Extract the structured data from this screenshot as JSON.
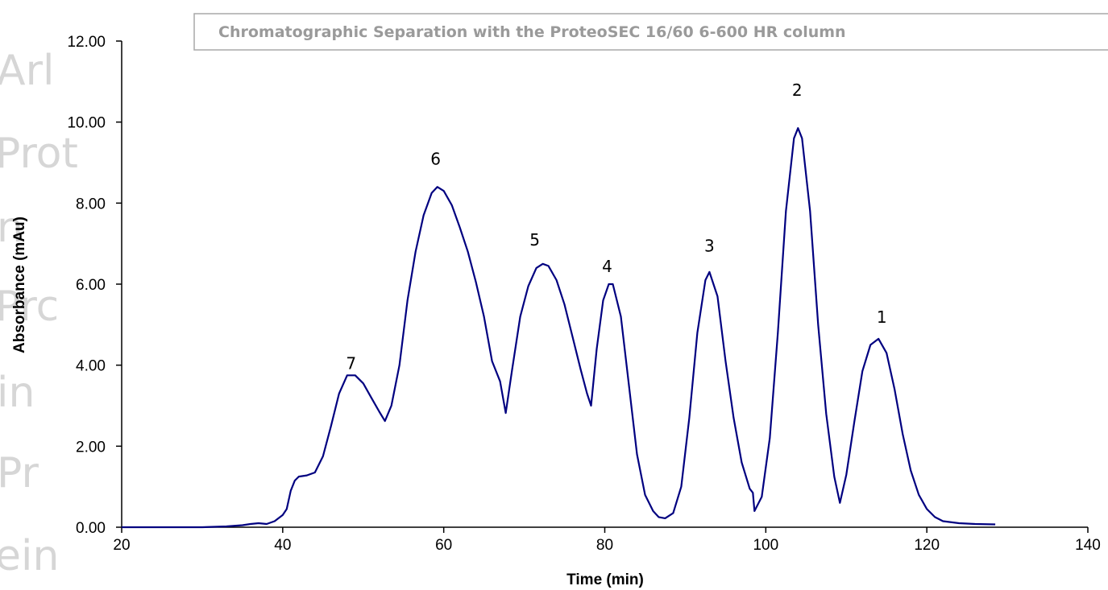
{
  "watermark": {
    "fragments": [
      "Arl",
      "Prot",
      "n",
      "Prc",
      "in",
      "Pr",
      "ein"
    ]
  },
  "chart_data": {
    "type": "line",
    "title": "Chromatographic Separation with the ProteoSEC  16/60 6-600 HR column",
    "xlabel": "Time (min)",
    "ylabel": "Absorbance (mAu)",
    "xlim": [
      20,
      140
    ],
    "ylim": [
      0,
      12
    ],
    "x_ticks": [
      "20",
      "40",
      "60",
      "80",
      "100",
      "120",
      "140"
    ],
    "y_ticks": [
      "0.00",
      "2.00",
      "4.00",
      "6.00",
      "8.00",
      "10.00",
      "12.00"
    ],
    "grid": false,
    "line_color": "#000080",
    "series": [
      {
        "points": [
          [
            20,
            0
          ],
          [
            30,
            0
          ],
          [
            33,
            0.02
          ],
          [
            35,
            0.05
          ],
          [
            36,
            0.08
          ],
          [
            37,
            0.1
          ],
          [
            38,
            0.08
          ],
          [
            39,
            0.15
          ],
          [
            40,
            0.3
          ],
          [
            40.5,
            0.45
          ],
          [
            41,
            0.9
          ],
          [
            41.5,
            1.15
          ],
          [
            42,
            1.25
          ],
          [
            43,
            1.28
          ],
          [
            44,
            1.35
          ],
          [
            45,
            1.75
          ],
          [
            46,
            2.5
          ],
          [
            47,
            3.3
          ],
          [
            48,
            3.75
          ],
          [
            49,
            3.75
          ],
          [
            50,
            3.55
          ],
          [
            51,
            3.2
          ],
          [
            52,
            2.85
          ],
          [
            52.7,
            2.62
          ],
          [
            53.5,
            3.0
          ],
          [
            54.5,
            4.0
          ],
          [
            55.5,
            5.6
          ],
          [
            56.5,
            6.8
          ],
          [
            57.5,
            7.7
          ],
          [
            58.5,
            8.25
          ],
          [
            59.2,
            8.4
          ],
          [
            60,
            8.3
          ],
          [
            61,
            7.95
          ],
          [
            62,
            7.4
          ],
          [
            63,
            6.8
          ],
          [
            64,
            6.05
          ],
          [
            65,
            5.2
          ],
          [
            66,
            4.1
          ],
          [
            67,
            3.6
          ],
          [
            67.7,
            2.82
          ],
          [
            68.5,
            3.9
          ],
          [
            69.5,
            5.2
          ],
          [
            70.5,
            5.95
          ],
          [
            71.5,
            6.4
          ],
          [
            72.3,
            6.5
          ],
          [
            73,
            6.45
          ],
          [
            74,
            6.1
          ],
          [
            75,
            5.5
          ],
          [
            76,
            4.7
          ],
          [
            77,
            3.9
          ],
          [
            77.8,
            3.3
          ],
          [
            78.3,
            3.0
          ],
          [
            79,
            4.4
          ],
          [
            79.8,
            5.6
          ],
          [
            80.5,
            6.0
          ],
          [
            81,
            6.0
          ],
          [
            82,
            5.2
          ],
          [
            83,
            3.5
          ],
          [
            84,
            1.8
          ],
          [
            85,
            0.8
          ],
          [
            86,
            0.4
          ],
          [
            86.7,
            0.25
          ],
          [
            87.5,
            0.22
          ],
          [
            88.5,
            0.35
          ],
          [
            89.5,
            1.0
          ],
          [
            90.5,
            2.7
          ],
          [
            91.5,
            4.8
          ],
          [
            92.5,
            6.1
          ],
          [
            93,
            6.3
          ],
          [
            94,
            5.7
          ],
          [
            95,
            4.1
          ],
          [
            96,
            2.7
          ],
          [
            97,
            1.6
          ],
          [
            98,
            0.95
          ],
          [
            98.4,
            0.85
          ],
          [
            98.6,
            0.4
          ],
          [
            99.5,
            0.75
          ],
          [
            100.5,
            2.2
          ],
          [
            101.5,
            4.8
          ],
          [
            102.5,
            7.8
          ],
          [
            103.5,
            9.6
          ],
          [
            104,
            9.85
          ],
          [
            104.5,
            9.6
          ],
          [
            105.5,
            7.8
          ],
          [
            106.5,
            5.0
          ],
          [
            107.5,
            2.8
          ],
          [
            108.5,
            1.25
          ],
          [
            109.2,
            0.6
          ],
          [
            110,
            1.3
          ],
          [
            111,
            2.6
          ],
          [
            112,
            3.85
          ],
          [
            113,
            4.5
          ],
          [
            114,
            4.65
          ],
          [
            115,
            4.3
          ],
          [
            116,
            3.4
          ],
          [
            117,
            2.3
          ],
          [
            118,
            1.4
          ],
          [
            119,
            0.8
          ],
          [
            120,
            0.45
          ],
          [
            121,
            0.25
          ],
          [
            122,
            0.15
          ],
          [
            124,
            0.1
          ],
          [
            126,
            0.08
          ],
          [
            128.5,
            0.07
          ]
        ]
      }
    ],
    "annotations": [
      {
        "text": "7",
        "x": 48.5,
        "y": 3.9
      },
      {
        "text": "6",
        "x": 59.0,
        "y": 8.95
      },
      {
        "text": "5",
        "x": 71.3,
        "y": 6.95
      },
      {
        "text": "4",
        "x": 80.3,
        "y": 6.3
      },
      {
        "text": "3",
        "x": 93.0,
        "y": 6.8
      },
      {
        "text": "2",
        "x": 103.9,
        "y": 10.65
      },
      {
        "text": "1",
        "x": 114.4,
        "y": 5.05
      }
    ]
  }
}
